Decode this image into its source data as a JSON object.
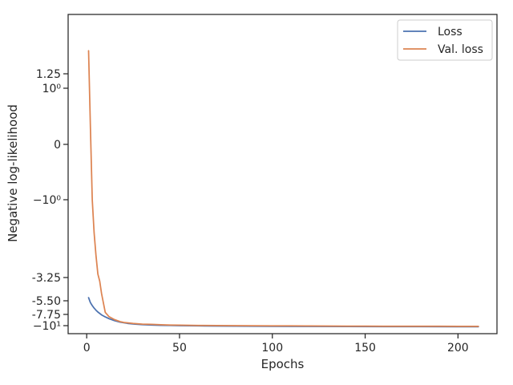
{
  "chart_data": {
    "type": "line",
    "xlabel": "Epochs",
    "ylabel": "Negative log-likelihood",
    "yscale": "symlog",
    "xlim": [
      -10,
      221
    ],
    "x_ticks": [
      0,
      50,
      100,
      150,
      200
    ],
    "y_ticks": [
      {
        "value": 1.25,
        "label": "1.25"
      },
      {
        "value": 1,
        "label": "10⁰"
      },
      {
        "value": 0,
        "label": "0"
      },
      {
        "value": -1,
        "label": "−10⁰"
      },
      {
        "value": -3.25,
        "label": "-3.25"
      },
      {
        "value": -5.5,
        "label": "-5.50"
      },
      {
        "value": -7.75,
        "label": "-7.75"
      },
      {
        "value": -10,
        "label": "−10¹"
      }
    ],
    "grid": false,
    "legend_position": "top-right",
    "series": [
      {
        "name": "Loss",
        "color": "#4c72b0",
        "x": [
          1,
          2,
          3,
          4,
          5,
          6,
          8,
          10,
          12,
          15,
          18,
          22,
          26,
          30,
          35,
          40,
          45,
          50,
          60,
          70,
          80,
          90,
          100,
          120,
          140,
          160,
          180,
          200,
          211
        ],
        "y": [
          -5.2,
          -5.8,
          -6.3,
          -6.7,
          -7.05,
          -7.35,
          -7.85,
          -8.25,
          -8.6,
          -9.0,
          -9.3,
          -9.55,
          -9.7,
          -9.8,
          -9.88,
          -9.93,
          -9.97,
          -10.0,
          -10.05,
          -10.08,
          -10.1,
          -10.12,
          -10.14,
          -10.16,
          -10.18,
          -10.2,
          -10.21,
          -10.22,
          -10.23
        ]
      },
      {
        "name": "Val. loss",
        "color": "#dd8452",
        "x": [
          1,
          2,
          3,
          4,
          5,
          6,
          7,
          8,
          10,
          12,
          15,
          18,
          20,
          25,
          30,
          35,
          40,
          45,
          50,
          60,
          70,
          80,
          90,
          100,
          110,
          120,
          130,
          140,
          150,
          160,
          170,
          180,
          190,
          200,
          211
        ],
        "y": [
          1.65,
          0.3,
          -1.0,
          -1.95,
          -2.6,
          -3.15,
          -3.6,
          -4.8,
          -7.4,
          -8.2,
          -8.8,
          -9.2,
          -9.35,
          -9.55,
          -9.7,
          -9.75,
          -9.82,
          -9.87,
          -9.9,
          -9.95,
          -9.98,
          -10.0,
          -10.02,
          -10.04,
          -10.05,
          -10.07,
          -10.08,
          -10.09,
          -10.1,
          -10.11,
          -10.12,
          -10.12,
          -10.13,
          -10.14,
          -10.15
        ]
      }
    ]
  }
}
